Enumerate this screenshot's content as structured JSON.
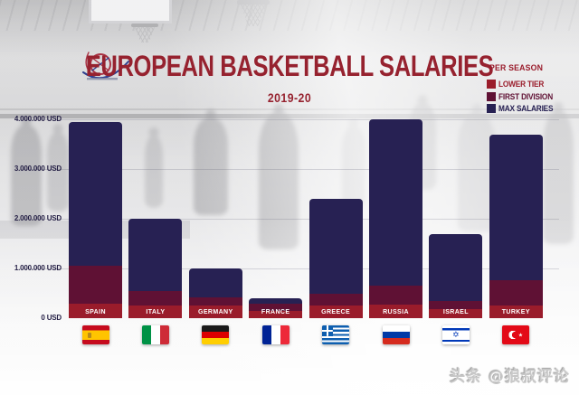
{
  "chart_data": {
    "type": "bar",
    "stacked": "overlay",
    "title": "EUROPEAN BASKETBALL SALARIES",
    "subtitle": "2019-20",
    "categories": [
      "SPAIN",
      "ITALY",
      "GERMANY",
      "FRANCE",
      "GREECE",
      "RUSSIA",
      "ISRAEL",
      "TURKEY"
    ],
    "series": [
      {
        "name": "MAX SALARIES",
        "color": "#272153",
        "values": [
          3950000,
          2000000,
          1000000,
          400000,
          2400000,
          4000000,
          1700000,
          3700000
        ]
      },
      {
        "name": "FIRST DIVISION",
        "color": "#5f1134",
        "values": [
          1050000,
          550000,
          420000,
          300000,
          500000,
          650000,
          350000,
          770000
        ]
      },
      {
        "name": "LOWER TIER",
        "color": "#9a1c2b",
        "values": [
          300000,
          250000,
          250000,
          150000,
          250000,
          270000,
          180000,
          250000
        ]
      }
    ],
    "yticks": [
      "4.000.000 USD",
      "3.000.000 USD",
      "2.000.000 USD",
      "1.000.000 USD",
      "0 USD"
    ],
    "ytick_values": [
      4000000,
      3000000,
      2000000,
      1000000,
      0
    ],
    "ylim": [
      0,
      4000000
    ],
    "currency": "USD",
    "grid": "faint-horizontal",
    "legend_title": "PER SEASON",
    "legend_position": "top-right",
    "flags": [
      "spain",
      "italy",
      "germany",
      "france",
      "greece",
      "russia",
      "israel",
      "turkey"
    ]
  },
  "legend": {
    "title": "PER SEASON",
    "items": [
      {
        "label": "LOWER TIER",
        "color": "#9a1c2b"
      },
      {
        "label": "FIRST DIVISION",
        "color": "#5f1134"
      },
      {
        "label": "MAX SALARIES",
        "color": "#272153"
      }
    ]
  },
  "logo": {
    "icon": "basketball-logo"
  },
  "watermark": {
    "text": "头条 @狼叔评论"
  }
}
